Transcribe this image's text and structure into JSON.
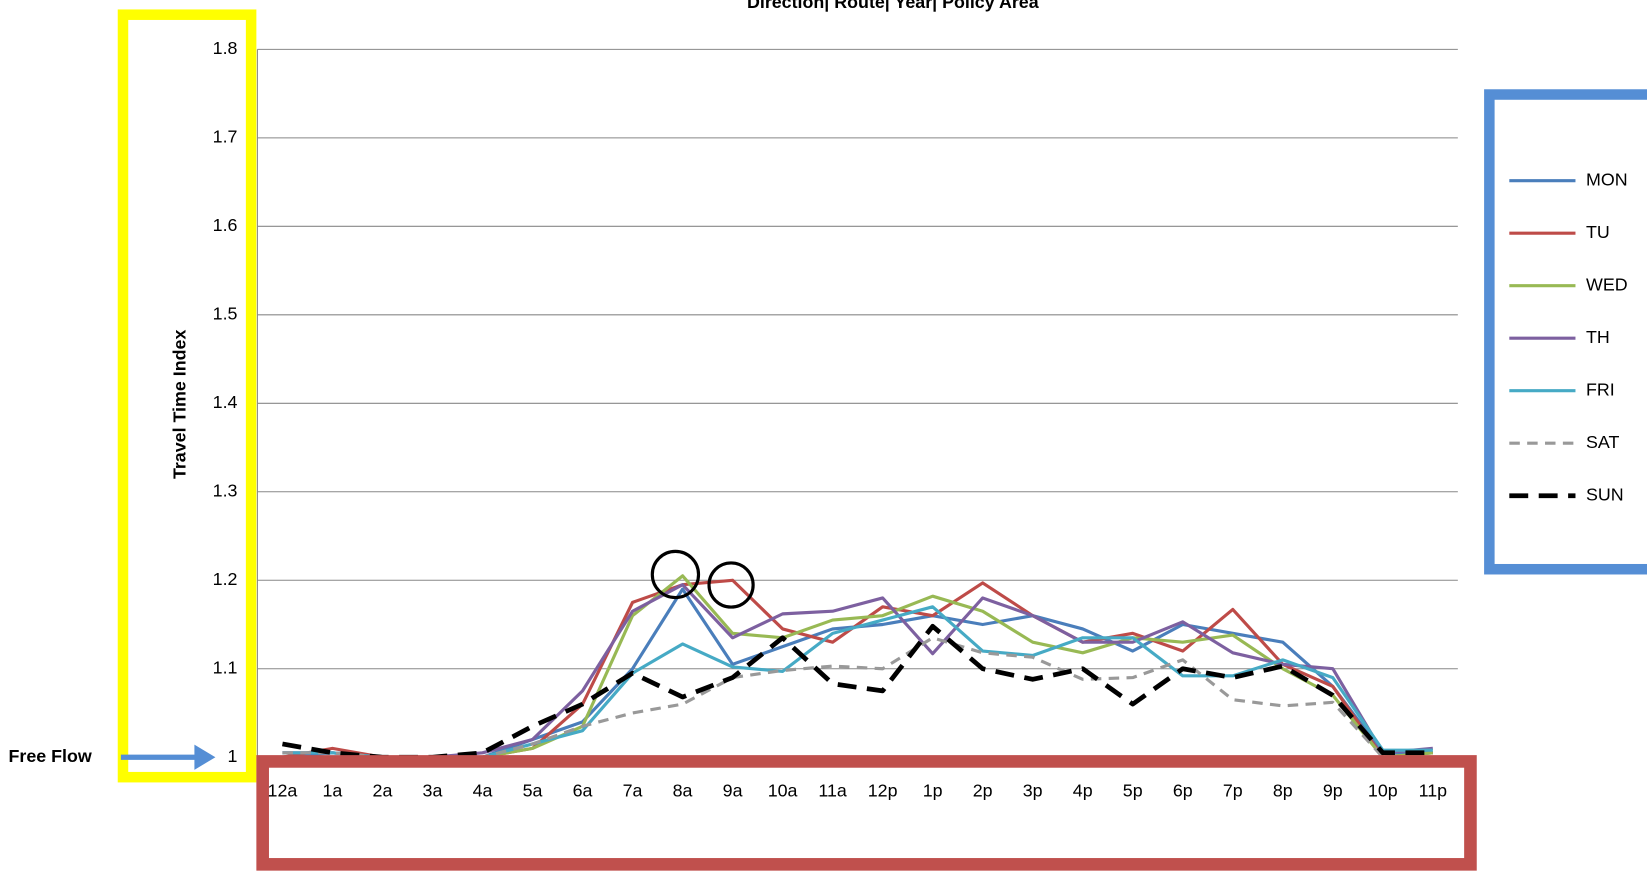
{
  "chart_data": {
    "type": "line",
    "title": "Direction| Route| Year| Policy Area",
    "y_label": "Travel Time Index",
    "annotation": "Free Flow",
    "categories": [
      "12a",
      "1a",
      "2a",
      "3a",
      "4a",
      "5a",
      "6a",
      "7a",
      "8a",
      "9a",
      "10a",
      "11a",
      "12p",
      "1p",
      "2p",
      "3p",
      "4p",
      "5p",
      "6p",
      "7p",
      "8p",
      "9p",
      "10p",
      "11p"
    ],
    "ylim": [
      1,
      1.8
    ],
    "yticks": [
      1,
      1.1,
      1.2,
      1.3,
      1.4,
      1.5,
      1.6,
      1.7,
      1.8
    ],
    "grid": true,
    "legend": "right",
    "series": [
      {
        "name": "MON",
        "color": "#4a7ebb",
        "dash": "solid",
        "values": [
          1.0,
          1.005,
          1.0,
          1.0,
          1.0,
          1.02,
          1.04,
          1.1,
          1.19,
          1.105,
          1.125,
          1.145,
          1.15,
          1.16,
          1.15,
          1.16,
          1.145,
          1.12,
          1.15,
          1.14,
          1.13,
          1.08,
          1.005,
          1.005
        ]
      },
      {
        "name": "TU",
        "color": "#be4b48",
        "dash": "solid",
        "values": [
          1.0,
          1.01,
          1.0,
          1.0,
          1.0,
          1.01,
          1.06,
          1.175,
          1.195,
          1.2,
          1.145,
          1.13,
          1.17,
          1.16,
          1.197,
          1.16,
          1.13,
          1.14,
          1.12,
          1.167,
          1.105,
          1.08,
          1.0,
          1.005
        ]
      },
      {
        "name": "WED",
        "color": "#98b954",
        "dash": "solid",
        "values": [
          1.0,
          1.0,
          1.0,
          1.0,
          1.0,
          1.01,
          1.035,
          1.16,
          1.205,
          1.14,
          1.135,
          1.155,
          1.16,
          1.182,
          1.165,
          1.13,
          1.118,
          1.135,
          1.13,
          1.138,
          1.1,
          1.07,
          1.0,
          1.005
        ]
      },
      {
        "name": "TH",
        "color": "#7d60a0",
        "dash": "solid",
        "values": [
          1.005,
          1.005,
          1.0,
          1.0,
          1.005,
          1.02,
          1.075,
          1.165,
          1.195,
          1.135,
          1.162,
          1.165,
          1.18,
          1.117,
          1.18,
          1.16,
          1.13,
          1.13,
          1.153,
          1.118,
          1.105,
          1.1,
          1.005,
          1.01
        ]
      },
      {
        "name": "FRI",
        "color": "#46aac5",
        "dash": "solid",
        "values": [
          1.005,
          1.005,
          1.0,
          1.0,
          1.0,
          1.015,
          1.03,
          1.095,
          1.128,
          1.102,
          1.097,
          1.14,
          1.155,
          1.17,
          1.12,
          1.115,
          1.135,
          1.135,
          1.092,
          1.092,
          1.11,
          1.09,
          1.008,
          1.008
        ]
      },
      {
        "name": "SAT",
        "color": "#999999",
        "dash": "dashed",
        "values": [
          1.005,
          1.005,
          1.0,
          1.0,
          1.0,
          1.015,
          1.035,
          1.05,
          1.06,
          1.09,
          1.098,
          1.103,
          1.1,
          1.135,
          1.118,
          1.113,
          1.088,
          1.09,
          1.11,
          1.065,
          1.058,
          1.062,
          1.0,
          1.0
        ]
      },
      {
        "name": "SUN",
        "color": "#000000",
        "dash": "dashed",
        "values": [
          1.015,
          1.005,
          1.0,
          1.0,
          1.005,
          1.035,
          1.06,
          1.095,
          1.068,
          1.09,
          1.135,
          1.083,
          1.075,
          1.148,
          1.1,
          1.088,
          1.1,
          1.06,
          1.1,
          1.09,
          1.103,
          1.07,
          1.005,
          1.005
        ]
      }
    ]
  }
}
